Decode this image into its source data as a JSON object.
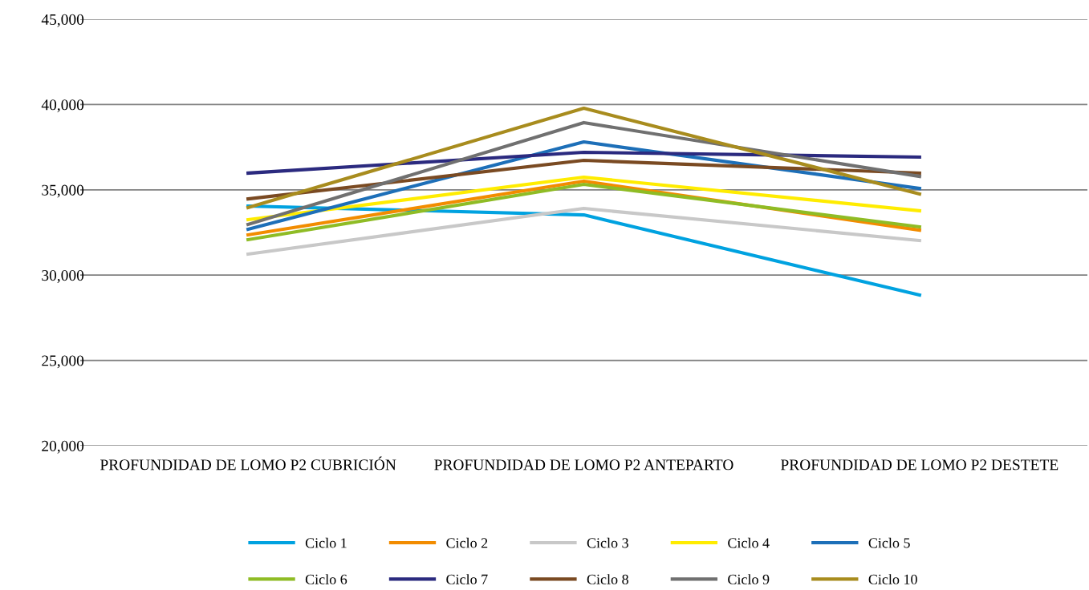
{
  "chart_data": {
    "type": "line",
    "categories": [
      "PROFUNDIDAD DE LOMO P2 CUBRICIÓN",
      "PROFUNDIDAD DE LOMO P2 ANTEPARTO",
      "PROFUNDIDAD DE LOMO P2 DESTETE"
    ],
    "ylim": [
      20000,
      45000
    ],
    "yticks": [
      {
        "value": 20000,
        "label": "20,000"
      },
      {
        "value": 25000,
        "label": "25,000"
      },
      {
        "value": 30000,
        "label": "30,000"
      },
      {
        "value": 35000,
        "label": "35,000"
      },
      {
        "value": 40000,
        "label": "40,000"
      },
      {
        "value": 45000,
        "label": "45,000"
      }
    ],
    "grid": "y",
    "legend": "bottom",
    "marker": "none",
    "line_style": "solid",
    "series": [
      {
        "name": "Ciclo 1",
        "color": "#00a2e0",
        "values": [
          34050,
          33530,
          28830
        ]
      },
      {
        "name": "Ciclo 2",
        "color": "#f28c00",
        "values": [
          32360,
          35510,
          32640
        ]
      },
      {
        "name": "Ciclo 3",
        "color": "#c8c8c8",
        "values": [
          31230,
          33910,
          32030
        ]
      },
      {
        "name": "Ciclo 4",
        "color": "#ffec00",
        "values": [
          33250,
          35740,
          33770
        ]
      },
      {
        "name": "Ciclo 5",
        "color": "#1d6fb8",
        "values": [
          32690,
          37810,
          35080
        ]
      },
      {
        "name": "Ciclo 6",
        "color": "#8fbc25",
        "values": [
          32080,
          35320,
          32830
        ]
      },
      {
        "name": "Ciclo 7",
        "color": "#2b2a7f",
        "values": [
          35980,
          37200,
          36920
        ]
      },
      {
        "name": "Ciclo 8",
        "color": "#7a4a22",
        "values": [
          34470,
          36730,
          35980
        ]
      },
      {
        "name": "Ciclo 9",
        "color": "#707070",
        "values": [
          32970,
          38940,
          35790
        ]
      },
      {
        "name": "Ciclo 10",
        "color": "#a88c1e",
        "values": [
          33960,
          39780,
          34760
        ]
      }
    ]
  }
}
